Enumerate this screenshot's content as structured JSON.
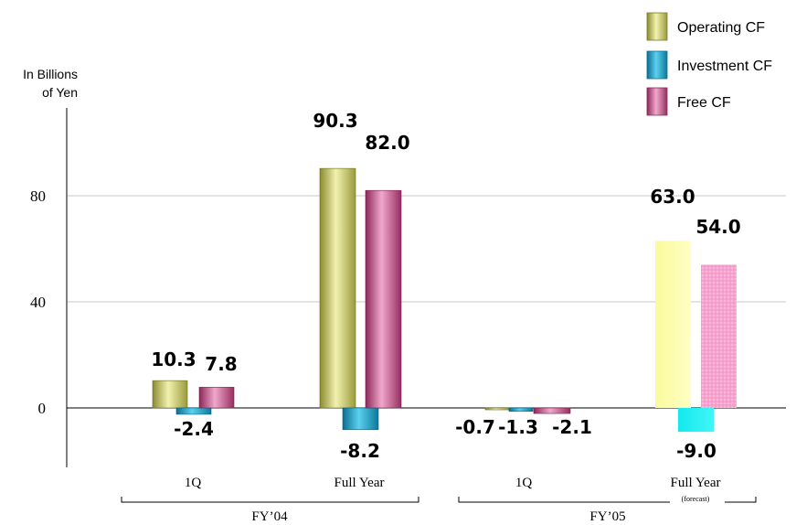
{
  "chart_data": {
    "type": "bar",
    "ylabel": "In Billions of Yen",
    "ylabel_lines": [
      "In Billions",
      "of Yen"
    ],
    "yticks": [
      0,
      40,
      80
    ],
    "ylim": [
      -18,
      95
    ],
    "grid": true,
    "legend_position": "top-right",
    "categories": [
      "1Q",
      "Full Year",
      "1Q",
      "Full Year"
    ],
    "category_notes": [
      "",
      "",
      "",
      "(forecast)"
    ],
    "groups": [
      {
        "label": "FY’04",
        "categories": [
          0,
          1
        ]
      },
      {
        "label": "FY’05",
        "categories": [
          2,
          3
        ]
      }
    ],
    "series": [
      {
        "name": "Operating CF",
        "values": [
          10.3,
          90.3,
          -0.7,
          63.0
        ],
        "labels": [
          "10.3",
          "90.3",
          "-0.7",
          "63.0"
        ],
        "color": "#c8c864",
        "forecast_color": "#fafaa0"
      },
      {
        "name": "Investment CF",
        "values": [
          -2.4,
          -8.2,
          -1.3,
          -9.0
        ],
        "labels": [
          "-2.4",
          "-8.2",
          "-1.3",
          "-9.0"
        ],
        "color": "#1fa3c8",
        "forecast_color": "#19f0f0"
      },
      {
        "name": "Free CF",
        "values": [
          7.8,
          82.0,
          -2.1,
          54.0
        ],
        "labels": [
          "7.8",
          "82.0",
          "-2.1",
          "54.0"
        ],
        "color": "#c85a8c",
        "forecast_color": "#f7a0cc"
      }
    ]
  }
}
